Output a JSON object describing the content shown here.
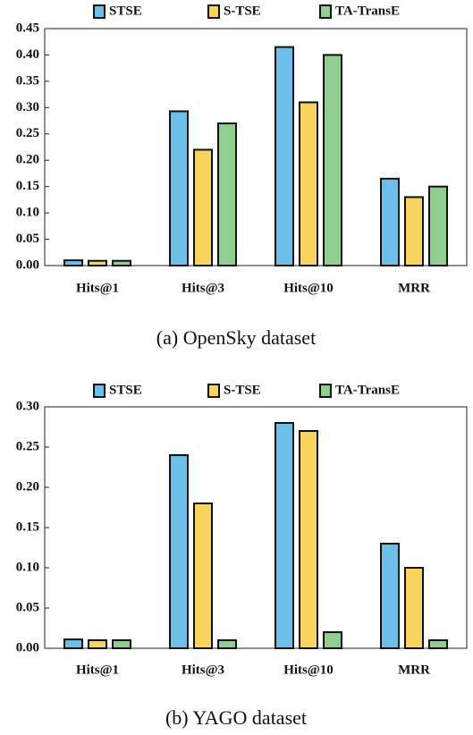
{
  "chart_data": [
    {
      "type": "bar",
      "caption": "(a) OpenSky dataset",
      "categories": [
        "Hits@1",
        "Hits@3",
        "Hits@10",
        "MRR"
      ],
      "series": [
        {
          "name": "STSE",
          "color": "#6cbfe8",
          "values": [
            0.01,
            0.293,
            0.415,
            0.165
          ]
        },
        {
          "name": "S-TSE",
          "color": "#f9d45c",
          "values": [
            0.009,
            0.22,
            0.31,
            0.13
          ]
        },
        {
          "name": "TA-TransE",
          "color": "#8fce8f",
          "values": [
            0.009,
            0.27,
            0.4,
            0.15
          ]
        }
      ],
      "ylim": [
        0,
        0.45
      ],
      "yticks": [
        {
          "value": 0,
          "label": "0.00"
        },
        {
          "value": 0.05,
          "label": "0.05"
        },
        {
          "value": 0.1,
          "label": "0.10"
        },
        {
          "value": 0.15,
          "label": "0.15"
        },
        {
          "value": 0.2,
          "label": "0.20"
        },
        {
          "value": 0.25,
          "label": "0.25"
        },
        {
          "value": 0.3,
          "label": "0.30"
        },
        {
          "value": 0.35,
          "label": "0.35"
        },
        {
          "value": 0.4,
          "label": "0.40"
        },
        {
          "value": 0.45,
          "label": "0.45"
        }
      ]
    },
    {
      "type": "bar",
      "caption": "(b) YAGO dataset",
      "categories": [
        "Hits@1",
        "Hits@3",
        "Hits@10",
        "MRR"
      ],
      "series": [
        {
          "name": "STSE",
          "color": "#6cbfe8",
          "values": [
            0.011,
            0.24,
            0.28,
            0.13
          ]
        },
        {
          "name": "S-TSE",
          "color": "#f9d45c",
          "values": [
            0.01,
            0.18,
            0.27,
            0.1
          ]
        },
        {
          "name": "TA-TransE",
          "color": "#8fce8f",
          "values": [
            0.01,
            0.01,
            0.02,
            0.01
          ]
        }
      ],
      "ylim": [
        0,
        0.3
      ],
      "yticks": [
        {
          "value": 0,
          "label": "0.00"
        },
        {
          "value": 0.05,
          "label": "0.05"
        },
        {
          "value": 0.1,
          "label": "0.10"
        },
        {
          "value": 0.15,
          "label": "0.15"
        },
        {
          "value": 0.2,
          "label": "0.20"
        },
        {
          "value": 0.25,
          "label": "0.25"
        },
        {
          "value": 0.3,
          "label": "0.30"
        }
      ]
    }
  ]
}
